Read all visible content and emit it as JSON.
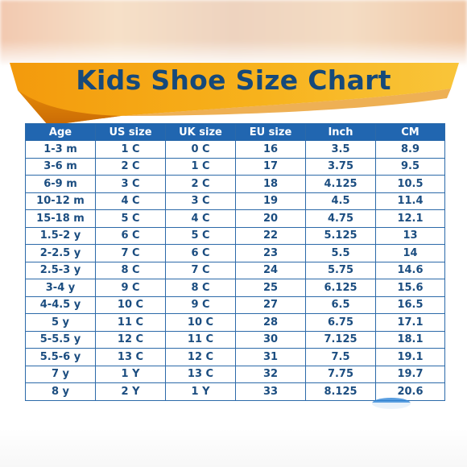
{
  "title": "Kids Shoe Size Chart",
  "colors": {
    "banner_orange": "#f5a00f",
    "banner_dark_orange": "#d9790a",
    "title_blue": "#16497a",
    "header_blue": "#2166b0",
    "cell_text": "#1b4d80"
  },
  "table": {
    "headers": [
      "Age",
      "US size",
      "UK size",
      "EU size",
      "Inch",
      "CM"
    ],
    "rows": [
      [
        "1-3 m",
        "1 C",
        "0 C",
        "16",
        "3.5",
        "8.9"
      ],
      [
        "3-6 m",
        "2 C",
        "1 C",
        "17",
        "3.75",
        "9.5"
      ],
      [
        "6-9 m",
        "3 C",
        "2 C",
        "18",
        "4.125",
        "10.5"
      ],
      [
        "10-12 m",
        "4 C",
        "3 C",
        "19",
        "4.5",
        "11.4"
      ],
      [
        "15-18 m",
        "5 C",
        "4 C",
        "20",
        "4.75",
        "12.1"
      ],
      [
        "1.5-2 y",
        "6 C",
        "5 C",
        "22",
        "5.125",
        "13"
      ],
      [
        "2-2.5 y",
        "7 C",
        "6 C",
        "23",
        "5.5",
        "14"
      ],
      [
        "2.5-3 y",
        "8 C",
        "7 C",
        "24",
        "5.75",
        "14.6"
      ],
      [
        "3-4 y",
        "9 C",
        "8 C",
        "25",
        "6.125",
        "15.6"
      ],
      [
        "4-4.5 y",
        "10 C",
        "9 C",
        "27",
        "6.5",
        "16.5"
      ],
      [
        "5 y",
        "11 C",
        "10 C",
        "28",
        "6.75",
        "17.1"
      ],
      [
        "5-5.5 y",
        "12 C",
        "11 C",
        "30",
        "7.125",
        "18.1"
      ],
      [
        "5.5-6 y",
        "13 C",
        "12 C",
        "31",
        "7.5",
        "19.1"
      ],
      [
        "7 y",
        "1 Y",
        "13 C",
        "32",
        "7.75",
        "19.7"
      ],
      [
        "8 y",
        "2 Y",
        "1 Y",
        "33",
        "8.125",
        "20.6"
      ]
    ]
  }
}
